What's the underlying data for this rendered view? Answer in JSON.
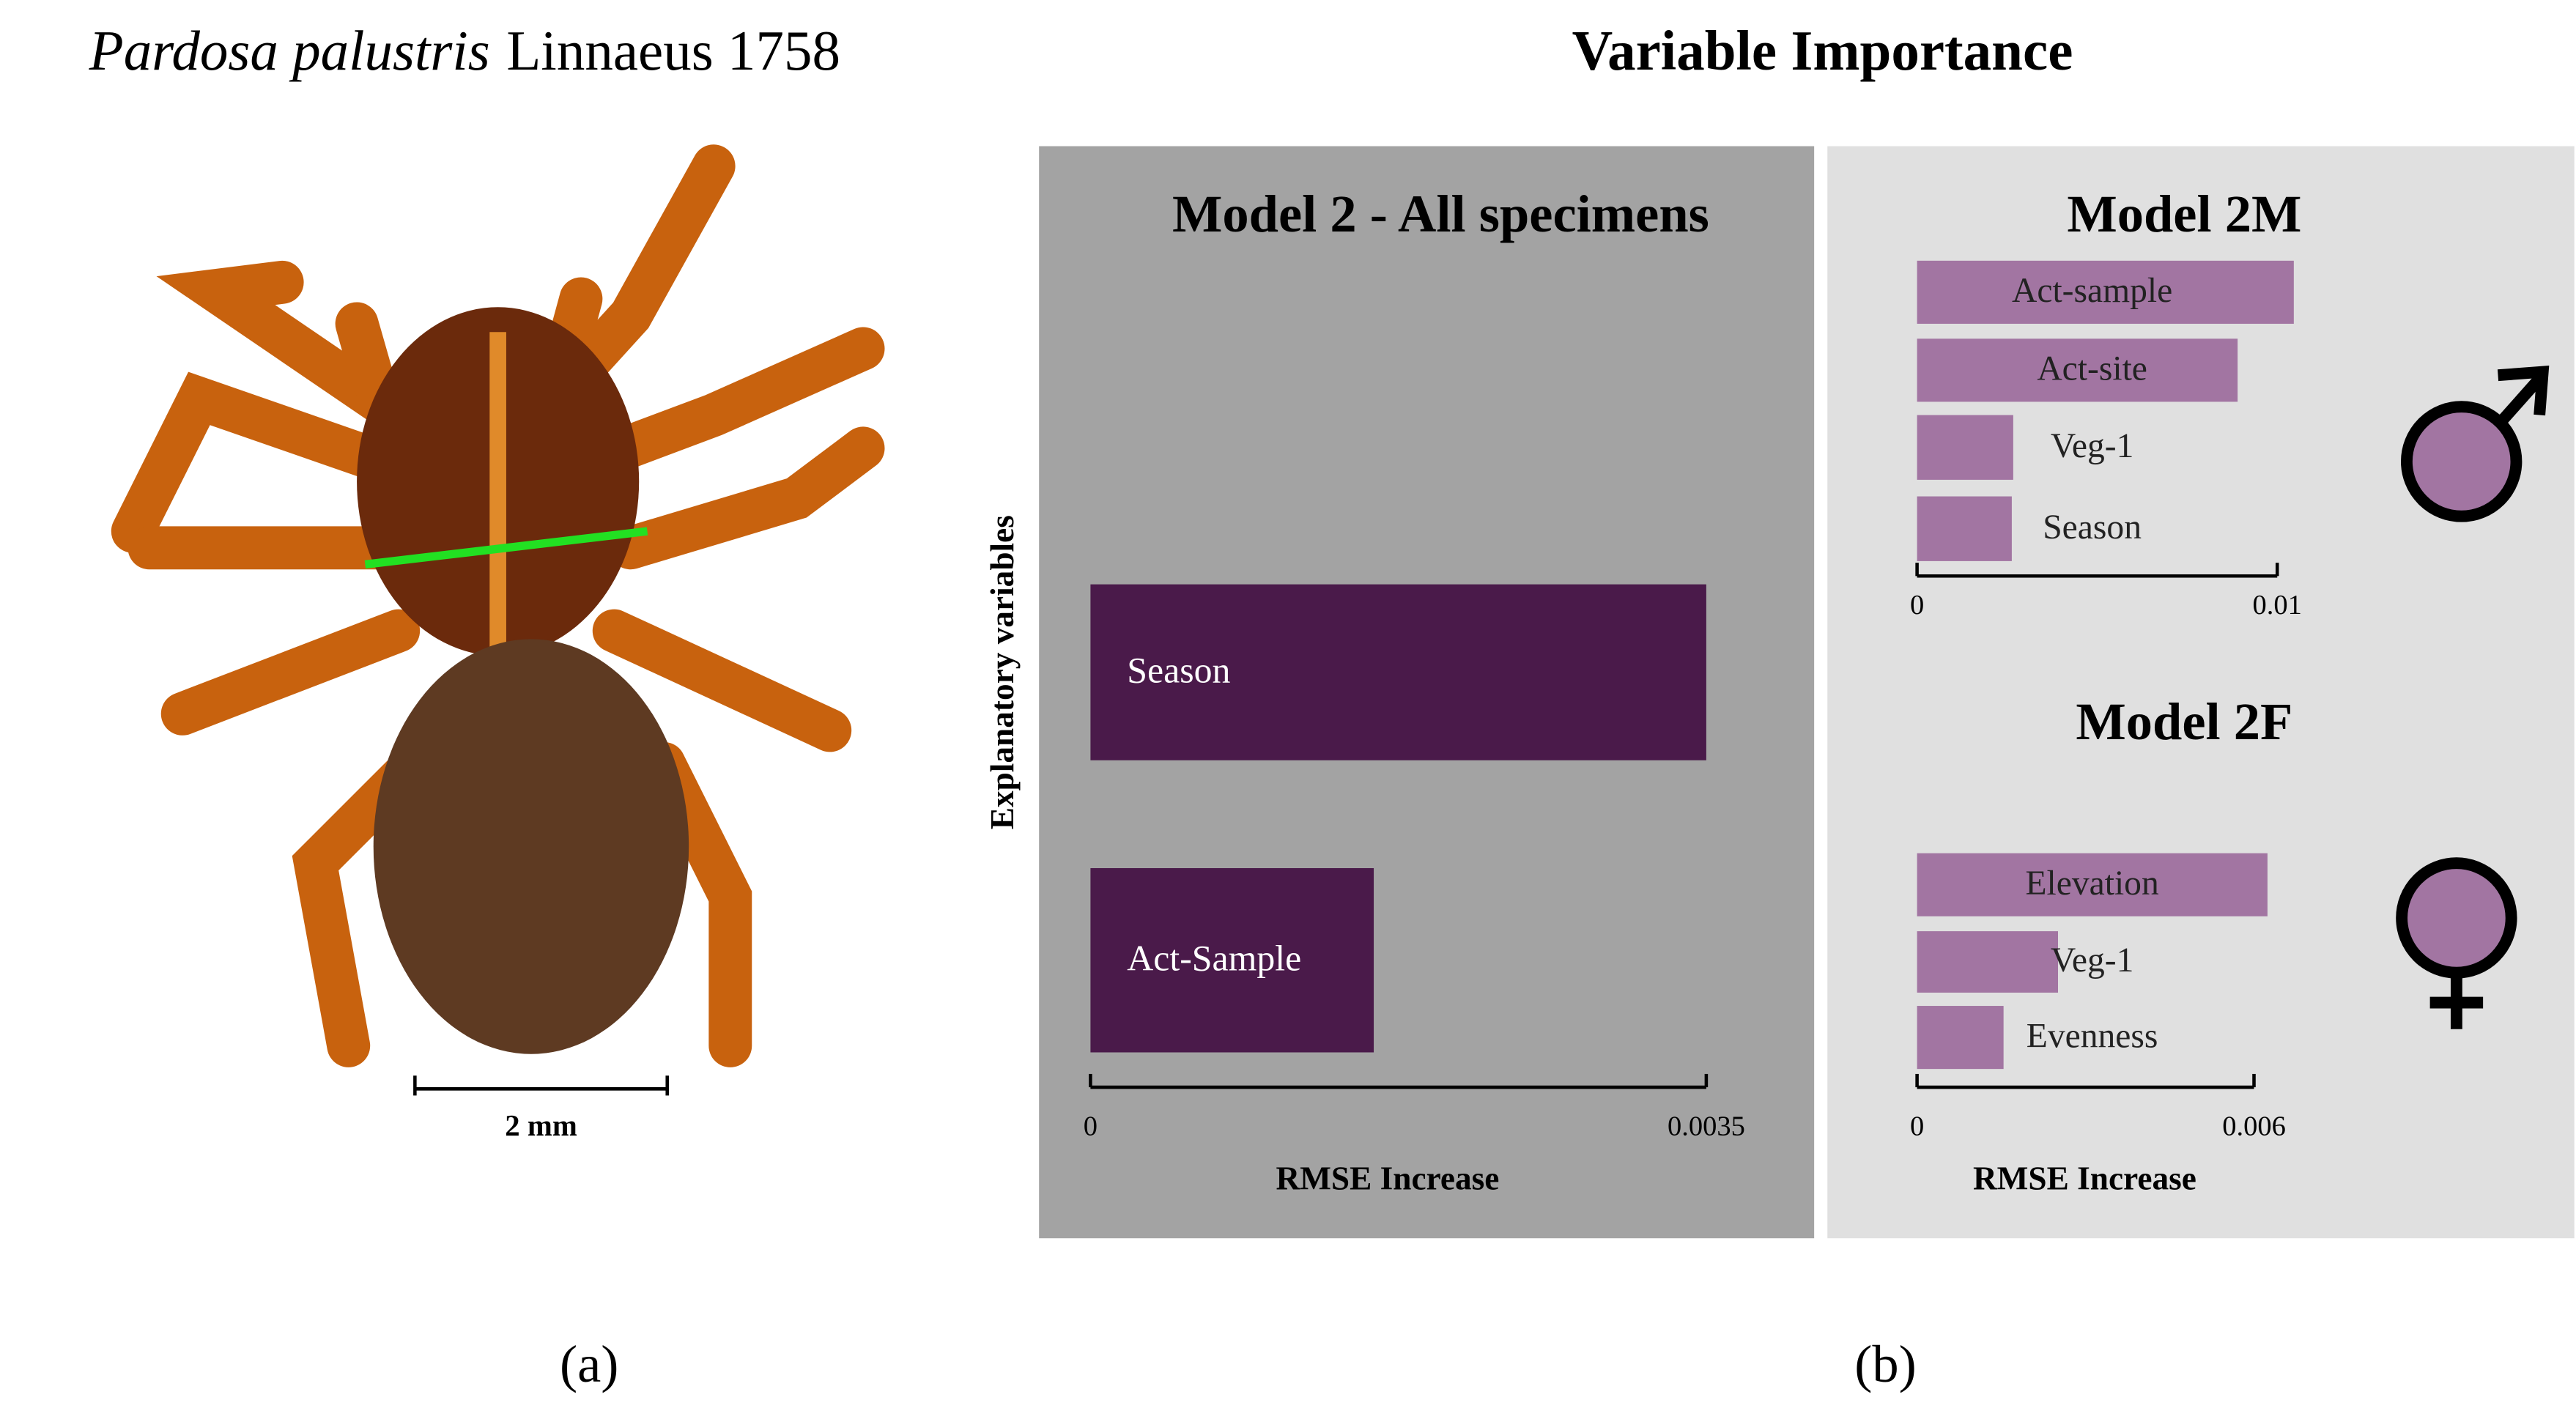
{
  "panel_a": {
    "species": "Pardosa palustris",
    "author": "Linnaeus 1758",
    "scale_label": "2 mm",
    "label": "(a)"
  },
  "panel_b": {
    "title": "Variable Importance",
    "label": "(b)"
  },
  "chart_data": [
    {
      "type": "barh",
      "title": "Model 2 - All specimens",
      "categories": [
        "Season",
        "Act-Sample"
      ],
      "values": [
        0.0035,
        0.00161
      ],
      "color": "#4a1a4a",
      "xlim": [
        0,
        0.0035
      ],
      "xticks": [
        0,
        0.0035
      ],
      "xlabel": "RMSE Increase",
      "ylabel": "Explanatory variables"
    },
    {
      "type": "barh",
      "title": "Model 2M",
      "categories": [
        "Act-sample",
        "Act-site",
        "Veg-1",
        "Season"
      ],
      "values": [
        0.01046,
        0.0089,
        0.00267,
        0.00263
      ],
      "color": "#a275a2",
      "xlim": [
        0,
        0.01
      ],
      "xticks": [
        0,
        0.01
      ]
    },
    {
      "type": "barh",
      "title": "Model 2F",
      "categories": [
        "Elevation",
        "Veg-1",
        "Evenness"
      ],
      "values": [
        0.00624,
        0.00251,
        0.00154
      ],
      "color": "#a275a2",
      "xlim": [
        0,
        0.006
      ],
      "xticks": [
        0,
        0.006
      ],
      "xlabel": "RMSE Increase"
    }
  ]
}
